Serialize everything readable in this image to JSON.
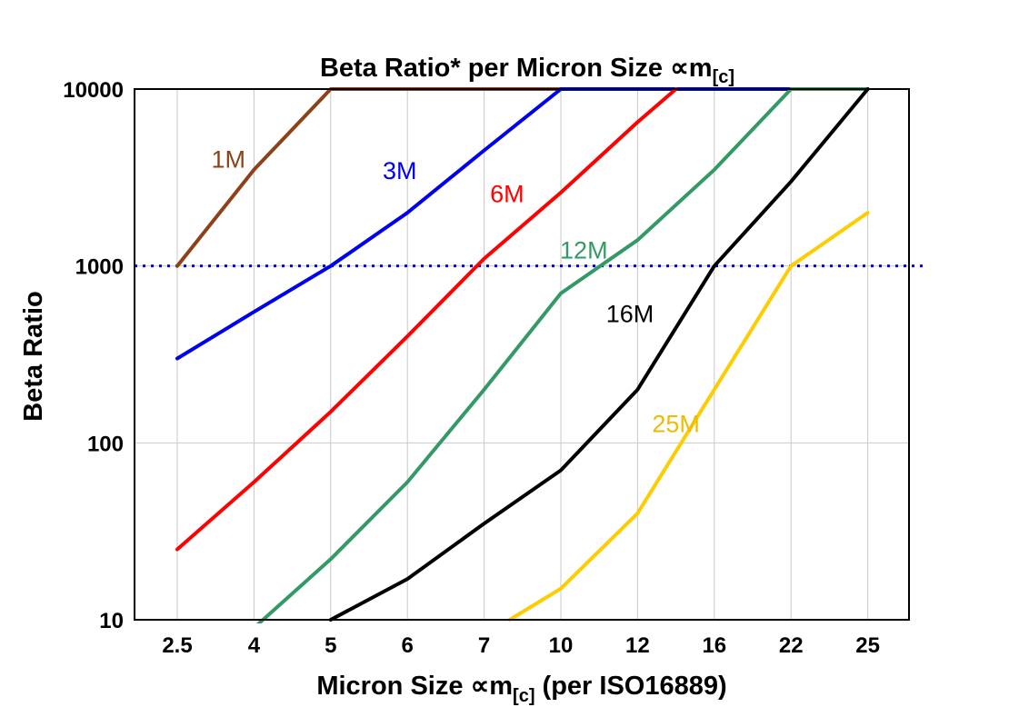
{
  "title": {
    "main": "Beta Ratio* per Micron Size ∝m",
    "sub": "[c]"
  },
  "axes": {
    "y_label": "Beta Ratio",
    "x_label_pre": "Micron Size ∝m",
    "x_label_sub": "[c]",
    "x_label_post": " (per ISO16889)",
    "y_tick_labels": [
      "10",
      "100",
      "1000",
      "10000"
    ],
    "x_tick_labels": [
      "2.5",
      "4",
      "5",
      "6",
      "7",
      "10",
      "12",
      "16",
      "22",
      "25"
    ]
  },
  "chart_data": {
    "type": "line",
    "title": "Beta Ratio* per Micron Size ∝m[c]",
    "xlabel": "Micron Size ∝m[c] (per ISO16889)",
    "ylabel": "Beta Ratio",
    "y_scale": "log",
    "ylim": [
      10,
      10000
    ],
    "grid": true,
    "legend": "inline-labels",
    "categories": [
      2.5,
      4,
      5,
      6,
      7,
      10,
      12,
      16,
      22,
      25
    ],
    "y_ticks": [
      10,
      100,
      1000,
      10000
    ],
    "reference_line": {
      "y": 1000,
      "color": "#0000ee",
      "style": "dotted"
    },
    "series": [
      {
        "name": "1M",
        "color": "#8c4118",
        "points": [
          [
            2.5,
            1000
          ],
          [
            4,
            3500
          ],
          [
            5,
            10000
          ],
          [
            10,
            10000
          ]
        ]
      },
      {
        "name": "3M",
        "color": "#0000f0",
        "points": [
          [
            2.5,
            300
          ],
          [
            4,
            550
          ],
          [
            5,
            1000
          ],
          [
            6,
            2000
          ],
          [
            7,
            4500
          ],
          [
            10,
            10000
          ],
          [
            22,
            10000
          ]
        ]
      },
      {
        "name": "6M",
        "color": "#ff0000",
        "points": [
          [
            2.5,
            25
          ],
          [
            4,
            60
          ],
          [
            5,
            150
          ],
          [
            6,
            400
          ],
          [
            7,
            1100
          ],
          [
            10,
            2600
          ],
          [
            12,
            6500
          ],
          [
            14,
            10000
          ]
        ]
      },
      {
        "name": "12M",
        "color": "#339966",
        "points": [
          [
            4,
            9
          ],
          [
            5,
            22
          ],
          [
            6,
            60
          ],
          [
            7,
            200
          ],
          [
            10,
            700
          ],
          [
            12,
            1400
          ],
          [
            16,
            3500
          ],
          [
            22,
            10000
          ],
          [
            25,
            10000
          ]
        ]
      },
      {
        "name": "16M",
        "color": "#000000",
        "points": [
          [
            5,
            10
          ],
          [
            6,
            17
          ],
          [
            7,
            35
          ],
          [
            10,
            70
          ],
          [
            12,
            200
          ],
          [
            16,
            1000
          ],
          [
            22,
            3000
          ],
          [
            25,
            10000
          ]
        ]
      },
      {
        "name": "25M",
        "color": "#ffcc00",
        "points": [
          [
            8,
            10
          ],
          [
            10,
            15
          ],
          [
            12,
            40
          ],
          [
            16,
            200
          ],
          [
            22,
            1000
          ],
          [
            25,
            2000
          ]
        ]
      }
    ],
    "series_labels": [
      {
        "text": "1M",
        "x": 3.5,
        "y": 3600,
        "color": "#8c4118"
      },
      {
        "text": "3M",
        "x": 5.9,
        "y": 3100,
        "color": "#0000f0"
      },
      {
        "text": "6M",
        "x": 7.9,
        "y": 2300,
        "color": "#ff0000"
      },
      {
        "text": "12M",
        "x": 10.6,
        "y": 1100,
        "color": "#339966"
      },
      {
        "text": "16M",
        "x": 11.8,
        "y": 480,
        "color": "#000000"
      },
      {
        "text": "25M",
        "x": 14.0,
        "y": 115,
        "color": "#eebb00"
      }
    ]
  }
}
